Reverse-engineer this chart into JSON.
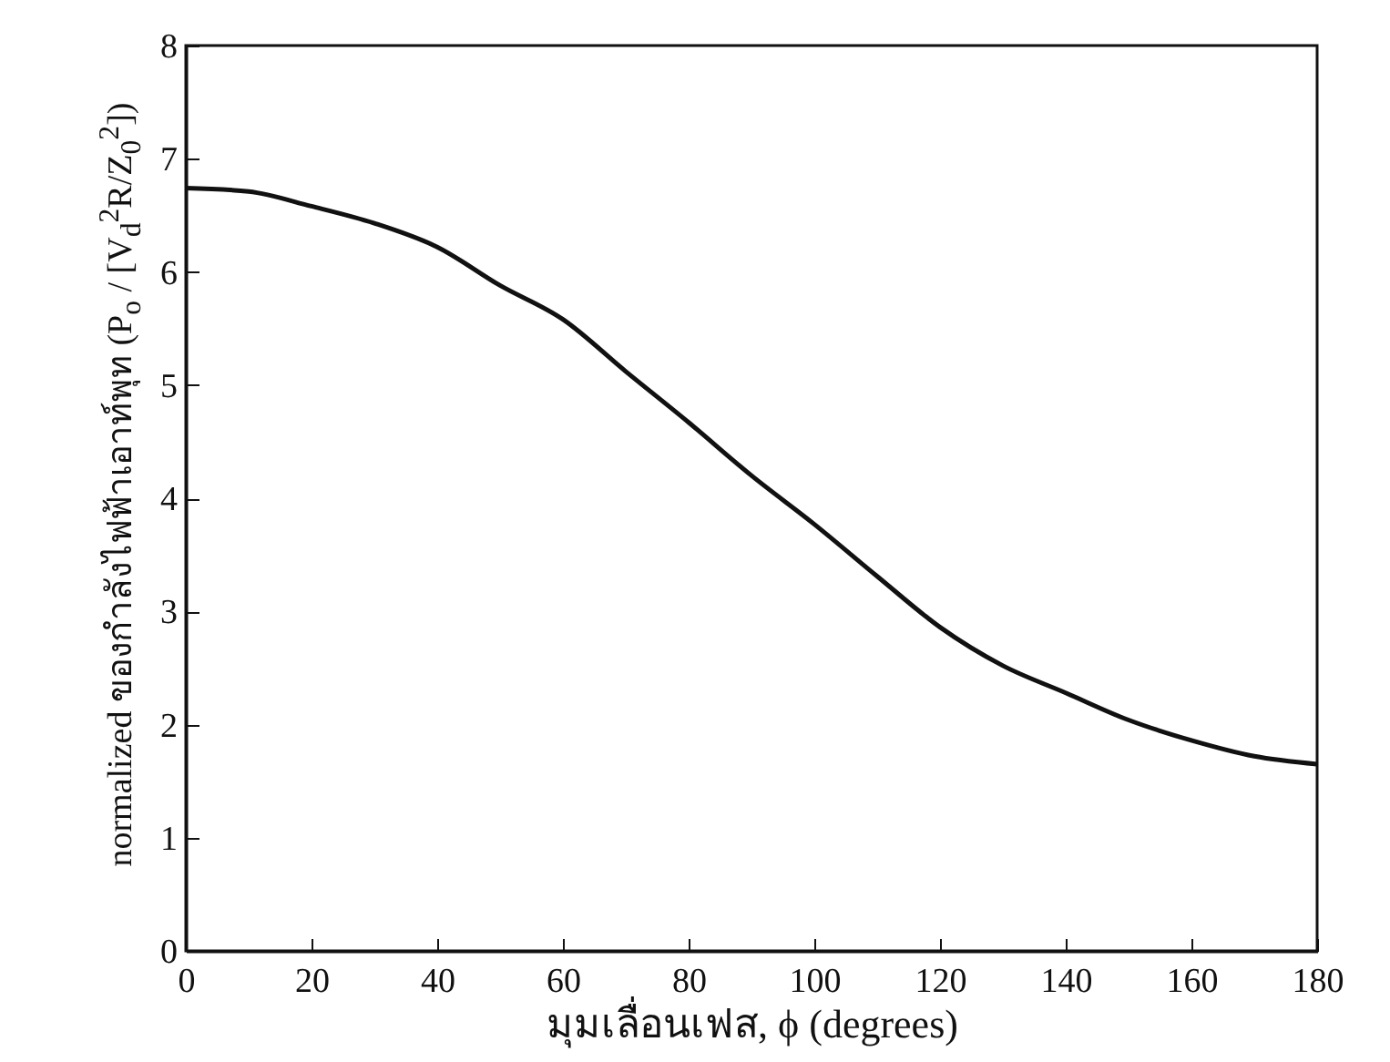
{
  "chart_data": {
    "type": "line",
    "xlabel": "มุมเลื่อนเฟส, ϕ (degrees)",
    "ylabel": "normalized ของกำลังไฟฟ้าเอาท์พุท (P$_{o}$ / [V$_{d}$$^{2}$R/Z$_{0}$$^{2}$])",
    "x": [
      0,
      10,
      20,
      30,
      40,
      50,
      60,
      70,
      80,
      90,
      100,
      110,
      120,
      130,
      140,
      150,
      160,
      170,
      180
    ],
    "series": [
      {
        "color": "#111111",
        "values": [
          6.74,
          6.71,
          6.58,
          6.43,
          6.22,
          5.88,
          5.58,
          5.12,
          4.67,
          4.2,
          3.77,
          3.31,
          2.86,
          2.52,
          2.28,
          2.04,
          1.86,
          1.72,
          1.65
        ]
      }
    ],
    "xlim": [
      0,
      180
    ],
    "xticks": [
      0,
      20,
      40,
      60,
      80,
      100,
      120,
      140,
      160,
      180
    ],
    "ylim": [
      0,
      8
    ],
    "yticks": [
      0,
      1,
      2,
      3,
      4,
      5,
      6,
      7,
      8
    ],
    "grid": false,
    "legend": false,
    "marker": "none",
    "line_style": "solid"
  }
}
